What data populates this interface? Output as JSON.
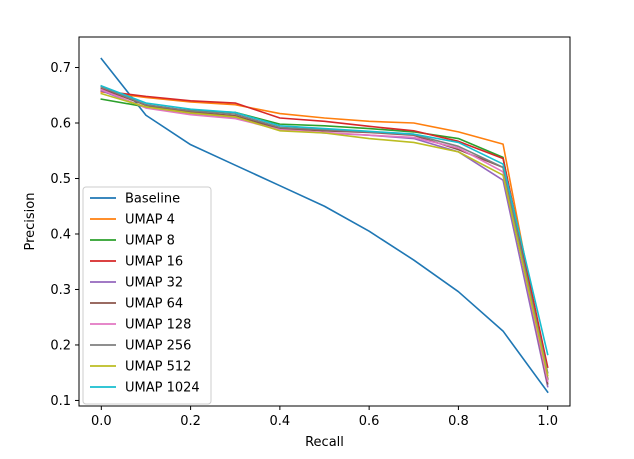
{
  "chart_data": {
    "type": "line",
    "title": "",
    "xlabel": "Recall",
    "ylabel": "Precision",
    "xlim": [
      -0.05,
      1.05
    ],
    "ylim": [
      0.09,
      0.755
    ],
    "xticks": [
      0.0,
      0.2,
      0.4,
      0.6,
      0.8,
      1.0
    ],
    "xtick_labels": [
      "0.0",
      "0.2",
      "0.4",
      "0.6",
      "0.8",
      "1.0"
    ],
    "yticks": [
      0.1,
      0.2,
      0.3,
      0.4,
      0.5,
      0.6,
      0.7
    ],
    "ytick_labels": [
      "0.1",
      "0.2",
      "0.3",
      "0.4",
      "0.5",
      "0.6",
      "0.7"
    ],
    "x": [
      0.0,
      0.1,
      0.2,
      0.3,
      0.4,
      0.5,
      0.6,
      0.7,
      0.8,
      0.9,
      1.0
    ],
    "legend_position": "lower-left",
    "series": [
      {
        "name": "Baseline",
        "color": "#1f77b4",
        "values": [
          0.716,
          0.614,
          0.561,
          0.524,
          0.487,
          0.45,
          0.405,
          0.353,
          0.296,
          0.225,
          0.115
        ]
      },
      {
        "name": "UMAP 4",
        "color": "#ff7f0e",
        "values": [
          0.656,
          0.646,
          0.638,
          0.633,
          0.617,
          0.609,
          0.603,
          0.6,
          0.584,
          0.562,
          0.14
        ]
      },
      {
        "name": "UMAP 8",
        "color": "#2ca02c",
        "values": [
          0.643,
          0.629,
          0.623,
          0.619,
          0.598,
          0.595,
          0.59,
          0.584,
          0.572,
          0.538,
          0.138
        ]
      },
      {
        "name": "UMAP 16",
        "color": "#d62728",
        "values": [
          0.658,
          0.648,
          0.64,
          0.636,
          0.609,
          0.603,
          0.594,
          0.586,
          0.567,
          0.536,
          0.16
        ]
      },
      {
        "name": "UMAP 32",
        "color": "#9467bd",
        "values": [
          0.658,
          0.628,
          0.617,
          0.61,
          0.588,
          0.582,
          0.578,
          0.572,
          0.548,
          0.497,
          0.125
        ]
      },
      {
        "name": "UMAP 64",
        "color": "#8c564b",
        "values": [
          0.662,
          0.632,
          0.62,
          0.613,
          0.59,
          0.586,
          0.583,
          0.578,
          0.552,
          0.52,
          0.13
        ]
      },
      {
        "name": "UMAP 128",
        "color": "#e377c2",
        "values": [
          0.66,
          0.627,
          0.615,
          0.608,
          0.588,
          0.583,
          0.578,
          0.574,
          0.555,
          0.512,
          0.135
        ]
      },
      {
        "name": "UMAP 256",
        "color": "#7f7f7f",
        "values": [
          0.665,
          0.633,
          0.622,
          0.616,
          0.592,
          0.588,
          0.584,
          0.579,
          0.558,
          0.52,
          0.15
        ]
      },
      {
        "name": "UMAP 512",
        "color": "#bcbd22",
        "values": [
          0.653,
          0.629,
          0.618,
          0.611,
          0.586,
          0.582,
          0.572,
          0.565,
          0.548,
          0.506,
          0.145
        ]
      },
      {
        "name": "UMAP 1024",
        "color": "#17becf",
        "values": [
          0.667,
          0.636,
          0.625,
          0.619,
          0.595,
          0.59,
          0.585,
          0.58,
          0.565,
          0.526,
          0.183
        ]
      }
    ]
  }
}
